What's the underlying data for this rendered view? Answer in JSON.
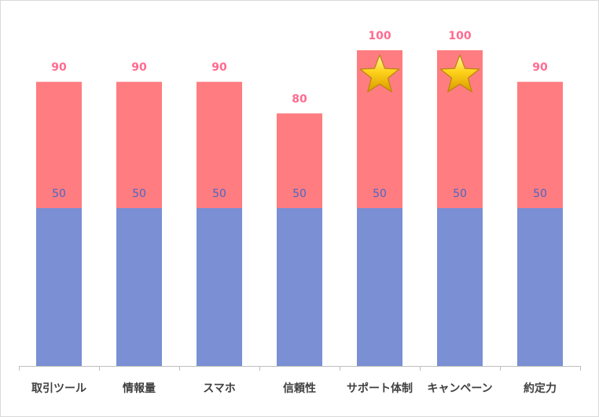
{
  "chart_data": {
    "type": "bar",
    "stacked": true,
    "categories": [
      "取引ツール",
      "情報量",
      "スマホ",
      "信頼性",
      "サポート体制",
      "キャンペーン",
      "約定力"
    ],
    "series": [
      {
        "values": [
          50,
          50,
          50,
          50,
          50,
          50,
          50
        ],
        "color": "#7a8fd4"
      },
      {
        "values": [
          40,
          40,
          40,
          30,
          50,
          50,
          40
        ],
        "color": "#ff7c80"
      }
    ],
    "totals": [
      90,
      90,
      90,
      80,
      100,
      100,
      90
    ],
    "base_labels": [
      50,
      50,
      50,
      50,
      50,
      50,
      50
    ],
    "total_label_color": "#ff6b8f",
    "base_label_color": "#4a66c4",
    "star_marked": [
      false,
      false,
      false,
      false,
      true,
      true,
      false
    ],
    "star_icon": "gold-star-icon",
    "ylim": [
      0,
      100
    ],
    "grid": false,
    "legend": "none",
    "title": "",
    "xlabel": "",
    "ylabel": ""
  }
}
